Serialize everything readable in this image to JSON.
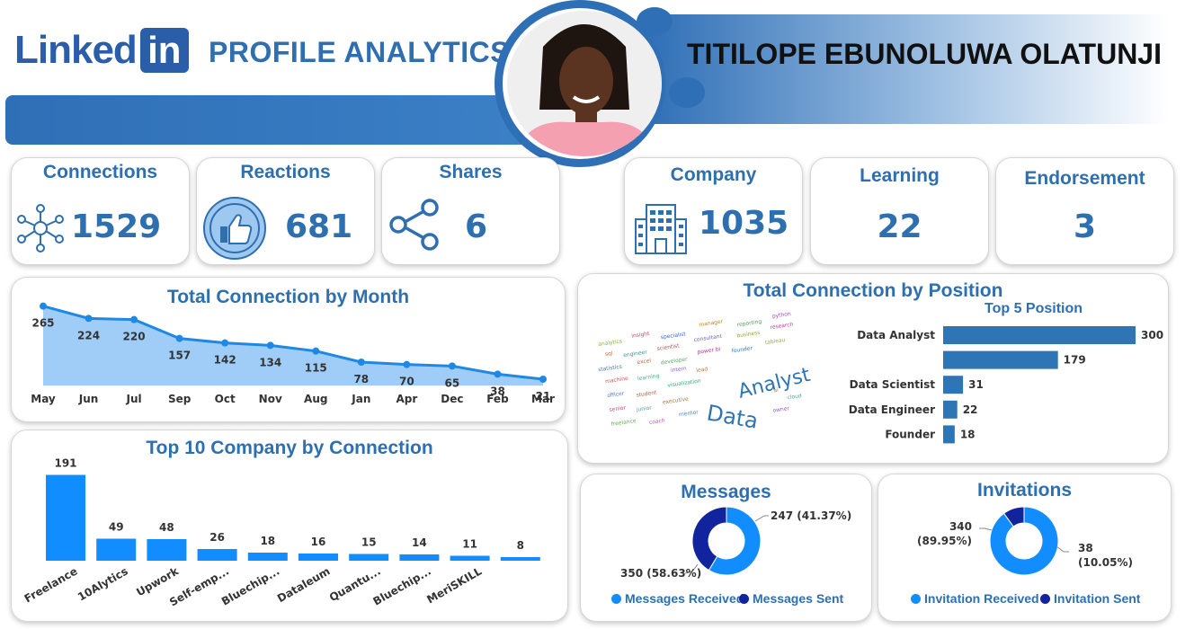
{
  "header": {
    "logo_text": "Linked",
    "logo_box": "in",
    "title": "PROFILE ANALYTICS",
    "name": "TITILOPE EBUNOLUWA OLATUNJI"
  },
  "kpis": {
    "connections": {
      "label": "Connections",
      "value": "1529",
      "icon": "network-icon"
    },
    "reactions": {
      "label": "Reactions",
      "value": "681",
      "icon": "thumbs-up-icon"
    },
    "shares": {
      "label": "Shares",
      "value": "6",
      "icon": "share-icon"
    },
    "company": {
      "label": "Company",
      "value": "1035",
      "icon": "building-icon"
    },
    "learning": {
      "label": "Learning",
      "value": "22"
    },
    "endorsement": {
      "label": "Endorsement",
      "value": "3"
    }
  },
  "wordcloud": {
    "big_words": [
      "Analyst",
      "Data"
    ]
  },
  "chart_data": [
    {
      "type": "area",
      "title": "Total Connection by Month",
      "categories": [
        "May",
        "Jun",
        "Jul",
        "Sep",
        "Oct",
        "Nov",
        "Aug",
        "Jan",
        "Apr",
        "Dec",
        "Feb",
        "Mar"
      ],
      "values": [
        265,
        224,
        220,
        157,
        142,
        134,
        115,
        78,
        70,
        65,
        38,
        21
      ],
      "ylim": [
        0,
        300
      ],
      "color": "#1e88e5"
    },
    {
      "type": "bar",
      "title": "Top 10 Company by Connection",
      "categories": [
        "Freelance",
        "10Alytics",
        "Upwork",
        "Self-emp...",
        "Bluechip...",
        "Dataleum",
        "Quantu...",
        "Bluechip...",
        "MeriSKILL",
        ""
      ],
      "values": [
        191,
        49,
        48,
        26,
        18,
        16,
        15,
        14,
        11,
        8
      ],
      "ylim": [
        0,
        200
      ],
      "color": "#118dff"
    },
    {
      "type": "bar",
      "orientation": "horizontal",
      "title": "Total Connection by Position",
      "subtitle": "Top 5 Position",
      "categories": [
        "Data Analyst",
        "",
        "Data Scientist",
        "Data Engineer",
        "Founder"
      ],
      "values": [
        300,
        179,
        31,
        22,
        18
      ],
      "xlim": [
        0,
        300
      ],
      "color": "#2e75b6"
    },
    {
      "type": "pie",
      "title": "Messages",
      "slices": [
        {
          "name": "Messages Received",
          "value": 350,
          "label": "350 (58.63%)",
          "color": "#118dff"
        },
        {
          "name": "Messages Sent",
          "value": 247,
          "label": "247 (41.37%)",
          "color": "#12239e"
        }
      ]
    },
    {
      "type": "pie",
      "title": "Invitations",
      "slices": [
        {
          "name": "Invitation Received",
          "value": 340,
          "label_line1": "340",
          "label_line2": "(89.95%)",
          "color": "#118dff"
        },
        {
          "name": "Invitation Sent",
          "value": 38,
          "label_line1": "38",
          "label_line2": "(10.05%)",
          "color": "#12239e"
        }
      ]
    }
  ]
}
